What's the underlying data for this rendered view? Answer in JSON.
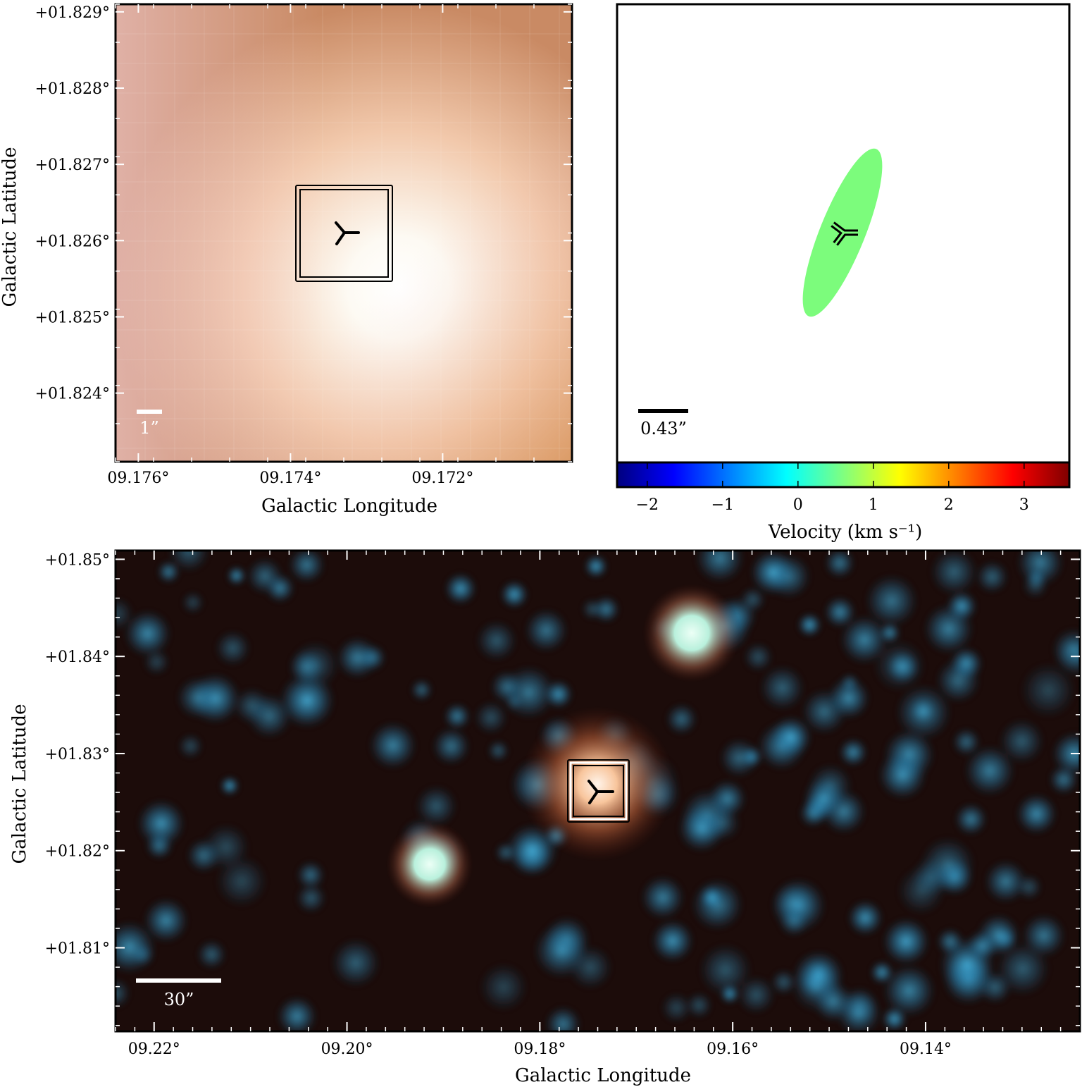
{
  "chart_data": [
    {
      "type": "heatmap",
      "panel": "top-left zoomed RGB image",
      "xlabel": "Galactic Longitude",
      "ylabel": "Galactic Latitude",
      "x_ticks": [
        "09.176°",
        "09.174°",
        "09.172°"
      ],
      "x_tick_values": [
        9.176,
        9.174,
        9.172
      ],
      "y_ticks": [
        "+01.829°",
        "+01.828°",
        "+01.827°",
        "+01.826°",
        "+01.825°",
        "+01.824°"
      ],
      "y_tick_values": [
        1.829,
        1.828,
        1.827,
        1.826,
        1.825,
        1.824
      ],
      "xlim": [
        9.1763,
        9.1703
      ],
      "ylim": [
        1.8231,
        1.8291
      ],
      "source_marker": {
        "l": 9.1738,
        "b": 1.826
      },
      "scale_bar": "1”",
      "colors": {
        "edge": "#c98a64",
        "center": "#fdfaf3",
        "warm_right": "#e8b47d"
      }
    },
    {
      "type": "scatter",
      "panel": "top-right velocity map",
      "scale_bar": "0.43”",
      "ellipse_color": "#7cfc7c",
      "colorbar": {
        "label": "Velocity (km s⁻¹)",
        "ticks": [
          "−2",
          "−1",
          "0",
          "1",
          "2",
          "3"
        ],
        "tick_values": [
          -2,
          -1,
          0,
          1,
          2,
          3
        ],
        "range": [
          -2.4,
          3.6
        ],
        "colormap": "jet"
      }
    },
    {
      "type": "heatmap",
      "panel": "bottom wide-field RGB image",
      "xlabel": "Galactic Longitude",
      "ylabel": "Galactic Latitude",
      "x_ticks": [
        "09.22°",
        "09.20°",
        "09.18°",
        "09.16°",
        "09.14°"
      ],
      "x_tick_values": [
        9.22,
        9.2,
        9.18,
        9.16,
        9.14
      ],
      "y_ticks": [
        "+01.85°",
        "+01.84°",
        "+01.83°",
        "+01.82°",
        "+01.81°"
      ],
      "y_tick_values": [
        1.85,
        1.84,
        1.83,
        1.82,
        1.81
      ],
      "xlim": [
        9.224,
        9.124
      ],
      "ylim": [
        1.8014,
        1.8509
      ],
      "source_marker": {
        "l": 9.1736,
        "b": 1.8261
      },
      "scale_bar": "30”",
      "bright_sources": [
        {
          "l": 9.1736,
          "b": 1.8275,
          "color": "#f3b48a"
        },
        {
          "l": 9.1615,
          "b": 1.8425,
          "color": "#d8fff0"
        },
        {
          "l": 9.1903,
          "b": 1.8185,
          "color": "#d8fff0"
        }
      ],
      "colors": {
        "background": "#1c0c0a",
        "star": "#3aa7d6"
      }
    }
  ]
}
